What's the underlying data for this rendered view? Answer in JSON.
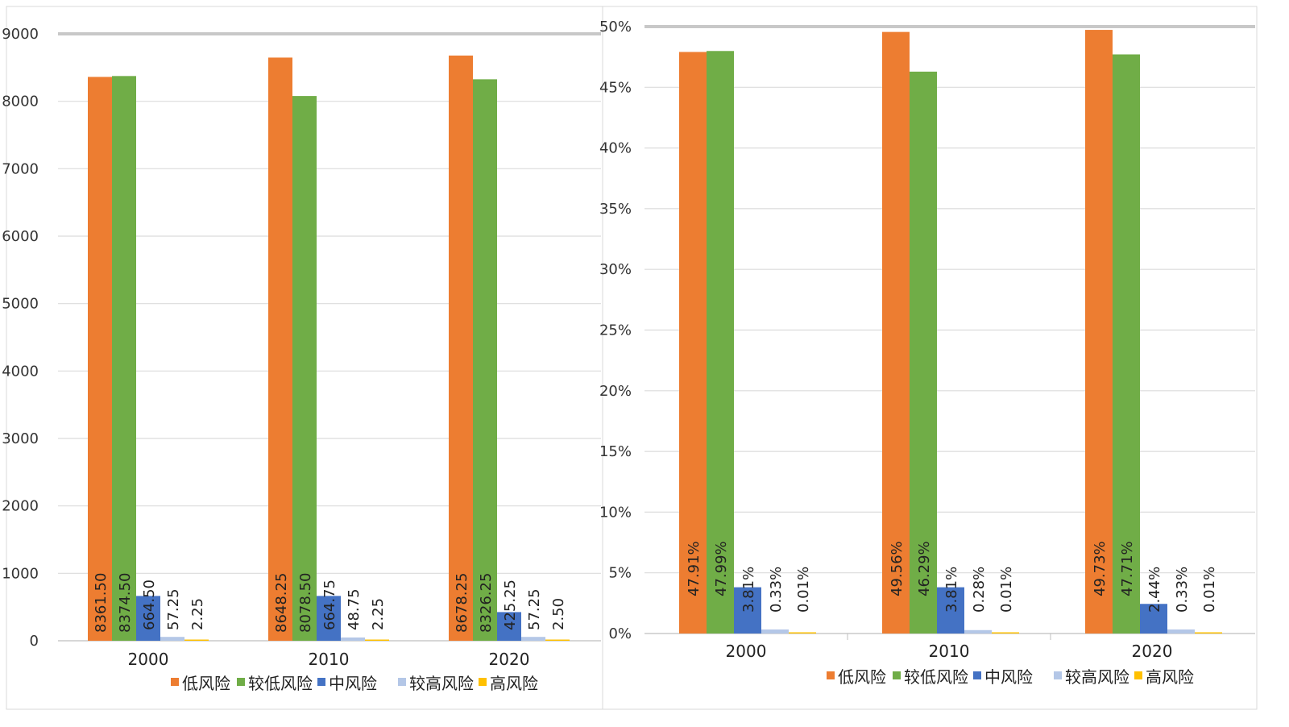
{
  "chart_data": [
    {
      "type": "bar",
      "categories": [
        "2000",
        "2010",
        "2020"
      ],
      "series": [
        {
          "name": "低风险",
          "values": [
            8361.5,
            8648.25,
            8678.25
          ],
          "labels": [
            "8361.50",
            "8648.25",
            "8678.25"
          ]
        },
        {
          "name": "较低风险",
          "values": [
            8374.5,
            8078.5,
            8326.25
          ],
          "labels": [
            "8374.50",
            "8078.50",
            "8326.25"
          ]
        },
        {
          "name": "中风险",
          "values": [
            664.5,
            664.75,
            425.25
          ],
          "labels": [
            "664.50",
            "664.75",
            "425.25"
          ]
        },
        {
          "name": "较高风险",
          "values": [
            57.25,
            48.75,
            57.25
          ],
          "labels": [
            "57.25",
            "48.75",
            "57.25"
          ]
        },
        {
          "name": "高风险",
          "values": [
            2.25,
            2.25,
            2.5
          ],
          "labels": [
            "2.25",
            "2.25",
            "2.50"
          ]
        }
      ],
      "ylim": [
        0,
        9000
      ],
      "yticks": [
        "0",
        "1000",
        "2000",
        "3000",
        "4000",
        "5000",
        "6000",
        "7000",
        "8000",
        "9000"
      ],
      "grid": true,
      "legend": "bottom"
    },
    {
      "type": "bar",
      "categories": [
        "2000",
        "2010",
        "2020"
      ],
      "series": [
        {
          "name": "低风险",
          "values": [
            47.91,
            49.56,
            49.73
          ],
          "labels": [
            "47.91%",
            "49.56%",
            "49.73%"
          ]
        },
        {
          "name": "较低风险",
          "values": [
            47.99,
            46.29,
            47.71
          ],
          "labels": [
            "47.99%",
            "46.29%",
            "47.71%"
          ]
        },
        {
          "name": "中风险",
          "values": [
            3.81,
            3.81,
            2.44
          ],
          "labels": [
            "3.81%",
            "3.81%",
            "2.44%"
          ]
        },
        {
          "name": "较高风险",
          "values": [
            0.33,
            0.28,
            0.33
          ],
          "labels": [
            "0.33%",
            "0.28%",
            "0.33%"
          ]
        },
        {
          "name": "高风险",
          "values": [
            0.01,
            0.01,
            0.01
          ],
          "labels": [
            "0.01%",
            "0.01%",
            "0.01%"
          ]
        }
      ],
      "ylim": [
        0,
        50
      ],
      "yticks": [
        "0%",
        "5%",
        "10%",
        "15%",
        "20%",
        "25%",
        "30%",
        "35%",
        "40%",
        "45%",
        "50%"
      ],
      "grid": true,
      "legend": "bottom"
    }
  ],
  "colors": [
    "#ED7D31",
    "#70AD47",
    "#4472C4",
    "#B4C7E7",
    "#FFC000"
  ]
}
